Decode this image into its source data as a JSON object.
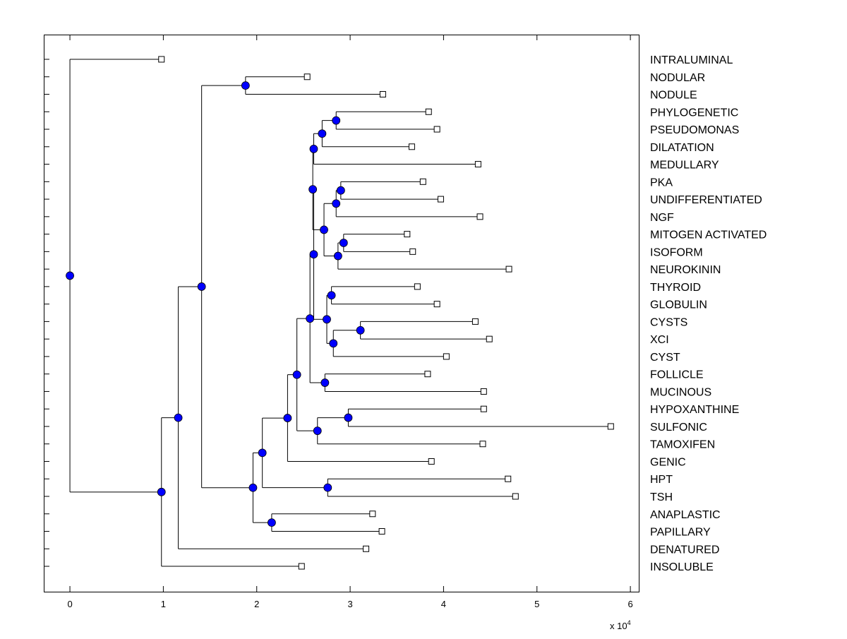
{
  "chart_data": {
    "type": "dendrogram",
    "title": "",
    "xlabel": "",
    "ylabel": "",
    "x_exponent_label": {
      "base": "x 10",
      "exp": "4"
    },
    "xlim": [
      -0.28,
      6.09
    ],
    "xticks": [
      0,
      1,
      2,
      3,
      4,
      5,
      6
    ],
    "xtick_labels": [
      "0",
      "1",
      "2",
      "3",
      "4",
      "5",
      "6"
    ],
    "orientation": "root-left",
    "node_color": "#0000ff",
    "leaf_marker": "open-square",
    "line_color": "#000000",
    "tree": {
      "h": 0,
      "c": [
        {
          "label": "INTRALUMINAL",
          "h": 0.98
        },
        {
          "h": 0.98,
          "c": [
            {
              "h": 1.16,
              "c": [
                {
                  "h": 1.41,
                  "c": [
                    {
                      "h": 1.88,
                      "c": [
                        {
                          "label": "NODULAR",
                          "h": 2.54
                        },
                        {
                          "label": "NODULE",
                          "h": 3.35
                        }
                      ]
                    },
                    {
                      "h": 1.96,
                      "c": [
                        {
                          "h": 2.06,
                          "c": [
                            {
                              "h": 2.33,
                              "c": [
                                {
                                  "h": 2.43,
                                  "c": [
                                    {
                                      "h": 2.57,
                                      "c": [
                                        {
                                          "h": 2.61,
                                          "c": [
                                            {
                                              "h": 2.6,
                                              "c": [
                                                {
                                                  "h": 2.61,
                                                  "c": [
                                                    {
                                                      "h": 2.7,
                                                      "c": [
                                                        {
                                                          "h": 2.85,
                                                          "c": [
                                                            {
                                                              "label": "PHYLOGENETIC",
                                                              "h": 3.84
                                                            },
                                                            {
                                                              "label": "PSEUDOMONAS",
                                                              "h": 3.93
                                                            }
                                                          ]
                                                        },
                                                        {
                                                          "label": "DILATATION",
                                                          "h": 3.66
                                                        }
                                                      ]
                                                    },
                                                    {
                                                      "label": "MEDULLARY",
                                                      "h": 4.37
                                                    }
                                                  ]
                                                },
                                                {
                                                  "h": 2.72,
                                                  "c": [
                                                    {
                                                      "h": 2.85,
                                                      "c": [
                                                        {
                                                          "h": 2.9,
                                                          "c": [
                                                            {
                                                              "label": "PKA",
                                                              "h": 3.78
                                                            },
                                                            {
                                                              "label": "UNDIFFERENTIATED",
                                                              "h": 3.97
                                                            }
                                                          ]
                                                        },
                                                        {
                                                          "label": "NGF",
                                                          "h": 4.39
                                                        }
                                                      ]
                                                    },
                                                    {
                                                      "h": 2.87,
                                                      "c": [
                                                        {
                                                          "h": 2.93,
                                                          "c": [
                                                            {
                                                              "label": "MITOGEN ACTIVATED",
                                                              "h": 3.61
                                                            },
                                                            {
                                                              "label": "ISOFORM",
                                                              "h": 3.67
                                                            }
                                                          ]
                                                        },
                                                        {
                                                          "label": "NEUROKININ",
                                                          "h": 4.7
                                                        }
                                                      ]
                                                    }
                                                  ]
                                                }
                                              ]
                                            },
                                            {
                                              "h": 2.75,
                                              "c": [
                                                {
                                                  "h": 2.8,
                                                  "c": [
                                                    {
                                                      "label": "THYROID",
                                                      "h": 3.72
                                                    },
                                                    {
                                                      "label": "GLOBULIN",
                                                      "h": 3.93
                                                    }
                                                  ]
                                                },
                                                {
                                                  "h": 2.82,
                                                  "c": [
                                                    {
                                                      "h": 3.11,
                                                      "c": [
                                                        {
                                                          "label": "CYSTS",
                                                          "h": 4.34
                                                        },
                                                        {
                                                          "label": "XCI",
                                                          "h": 4.49
                                                        }
                                                      ]
                                                    },
                                                    {
                                                      "label": "CYST",
                                                      "h": 4.03
                                                    }
                                                  ]
                                                }
                                              ]
                                            }
                                          ]
                                        },
                                        {
                                          "h": 2.73,
                                          "c": [
                                            {
                                              "label": "FOLLICLE",
                                              "h": 3.83
                                            },
                                            {
                                              "label": "MUCINOUS",
                                              "h": 4.43
                                            }
                                          ]
                                        }
                                      ]
                                    },
                                    {
                                      "h": 2.65,
                                      "c": [
                                        {
                                          "h": 2.98,
                                          "c": [
                                            {
                                              "label": "HYPOXANTHINE",
                                              "h": 4.43
                                            },
                                            {
                                              "label": "SULFONIC",
                                              "h": 5.79
                                            }
                                          ]
                                        },
                                        {
                                          "label": "TAMOXIFEN",
                                          "h": 4.42
                                        }
                                      ]
                                    }
                                  ]
                                },
                                {
                                  "label": "GENIC",
                                  "h": 3.87
                                }
                              ]
                            },
                            {
                              "h": 2.76,
                              "c": [
                                {
                                  "label": "HPT",
                                  "h": 4.69
                                },
                                {
                                  "label": "TSH",
                                  "h": 4.77
                                }
                              ]
                            }
                          ]
                        },
                        {
                          "h": 2.16,
                          "c": [
                            {
                              "label": "ANAPLASTIC",
                              "h": 3.24
                            },
                            {
                              "label": "PAPILLARY",
                              "h": 3.34
                            }
                          ]
                        }
                      ]
                    }
                  ]
                },
                {
                  "label": "DENATURED",
                  "h": 3.17
                }
              ]
            },
            {
              "label": "INSOLUBLE",
              "h": 2.48
            }
          ]
        }
      ]
    }
  }
}
